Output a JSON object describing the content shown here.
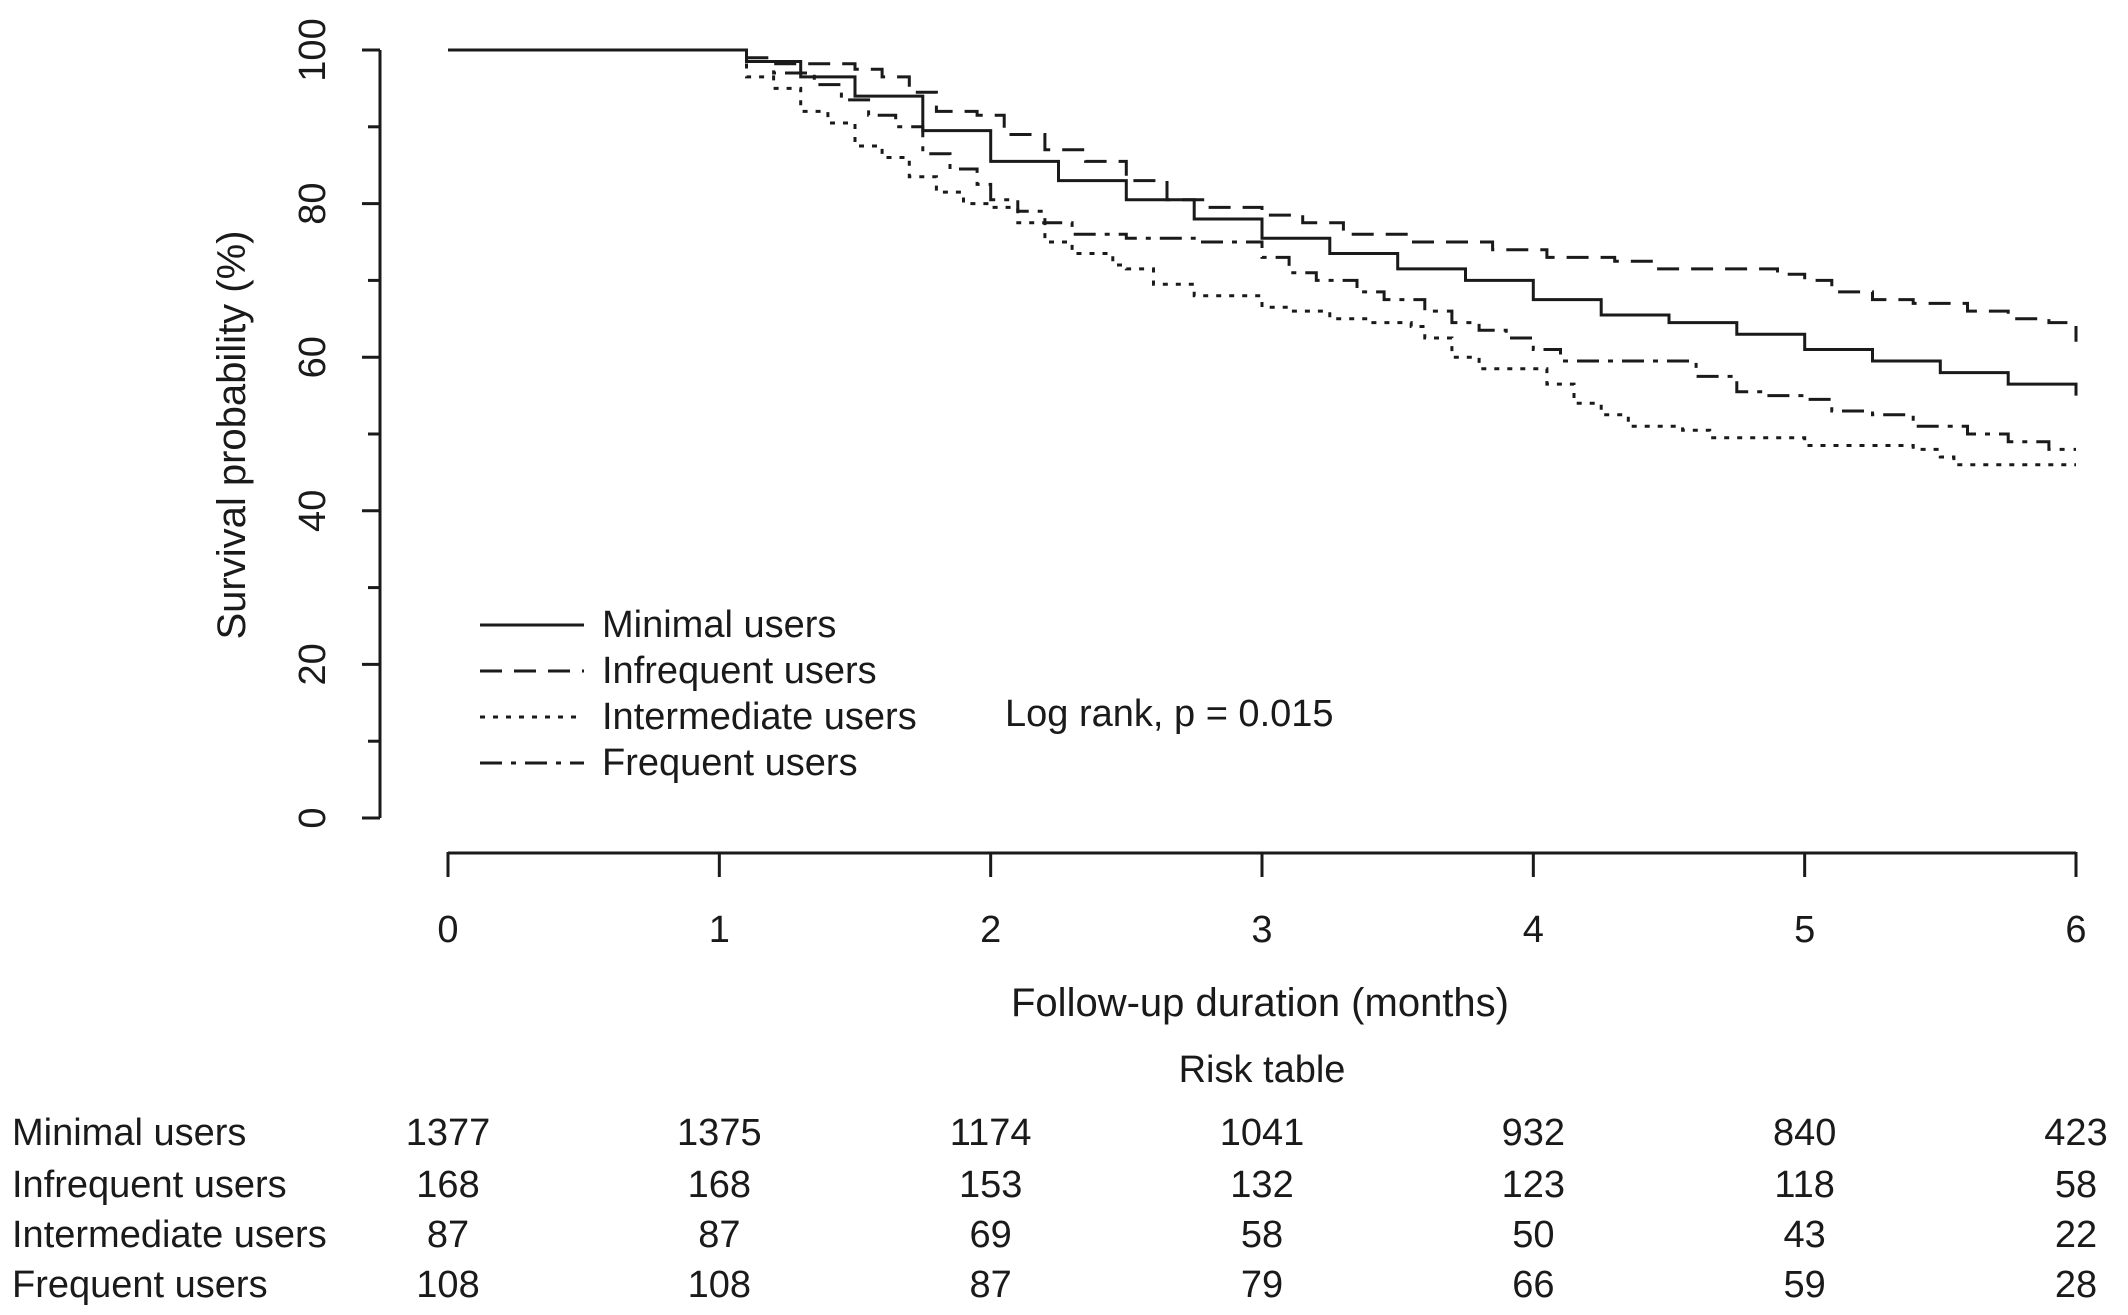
{
  "chart_data": {
    "type": "line",
    "title": "",
    "xlabel": "Follow-up duration (months)",
    "ylabel": "Survival probability (%)",
    "xlim": [
      0,
      6
    ],
    "ylim": [
      0,
      100
    ],
    "x_ticks": [
      "0",
      "1",
      "2",
      "3",
      "4",
      "5",
      "6"
    ],
    "y_ticks": [
      "0",
      "20",
      "40",
      "60",
      "80",
      "100"
    ],
    "grid": false,
    "legend_position": "bottom-left",
    "annotation": "Log rank, p = 0.015",
    "series": [
      {
        "name": "Minimal users",
        "dash": "solid",
        "points": [
          [
            0,
            100
          ],
          [
            1,
            100
          ],
          [
            1.1,
            98.5
          ],
          [
            1.3,
            96.5
          ],
          [
            1.5,
            94
          ],
          [
            1.75,
            89.5
          ],
          [
            2,
            85.5
          ],
          [
            2.25,
            83
          ],
          [
            2.5,
            80.5
          ],
          [
            2.75,
            78
          ],
          [
            3,
            75.5
          ],
          [
            3.25,
            73.5
          ],
          [
            3.5,
            71.5
          ],
          [
            3.75,
            70
          ],
          [
            4,
            67.5
          ],
          [
            4.25,
            65.5
          ],
          [
            4.5,
            64.5
          ],
          [
            4.75,
            63
          ],
          [
            5,
            61
          ],
          [
            5.25,
            59.5
          ],
          [
            5.5,
            58
          ],
          [
            5.75,
            56.5
          ],
          [
            6,
            55
          ]
        ]
      },
      {
        "name": "Infrequent users",
        "dash": "dashed",
        "points": [
          [
            0,
            100
          ],
          [
            1,
            100
          ],
          [
            1.1,
            99
          ],
          [
            1.2,
            98.2
          ],
          [
            1.4,
            98.2
          ],
          [
            1.5,
            97.5
          ],
          [
            1.6,
            96.5
          ],
          [
            1.7,
            94.5
          ],
          [
            1.8,
            92
          ],
          [
            1.95,
            91.5
          ],
          [
            2.05,
            89
          ],
          [
            2.2,
            87
          ],
          [
            2.35,
            85.5
          ],
          [
            2.5,
            83
          ],
          [
            2.65,
            80.5
          ],
          [
            2.8,
            79.5
          ],
          [
            3,
            78.5
          ],
          [
            3.15,
            77.5
          ],
          [
            3.3,
            76
          ],
          [
            3.55,
            75
          ],
          [
            3.85,
            74
          ],
          [
            4.05,
            73
          ],
          [
            4.3,
            72.5
          ],
          [
            4.45,
            71.5
          ],
          [
            4.75,
            71.5
          ],
          [
            4.9,
            70.8
          ],
          [
            5,
            70
          ],
          [
            5.1,
            68.5
          ],
          [
            5.25,
            67.5
          ],
          [
            5.4,
            67
          ],
          [
            5.6,
            66
          ],
          [
            5.75,
            65
          ],
          [
            5.9,
            64.5
          ],
          [
            6,
            62
          ]
        ]
      },
      {
        "name": "Intermediate users",
        "dash": "dotted",
        "points": [
          [
            0,
            100
          ],
          [
            1,
            100
          ],
          [
            1.1,
            96.5
          ],
          [
            1.2,
            95
          ],
          [
            1.3,
            92
          ],
          [
            1.4,
            90.5
          ],
          [
            1.5,
            87.5
          ],
          [
            1.6,
            86
          ],
          [
            1.7,
            83.5
          ],
          [
            1.8,
            81.5
          ],
          [
            1.9,
            80
          ],
          [
            2,
            79.5
          ],
          [
            2.1,
            77.5
          ],
          [
            2.2,
            75
          ],
          [
            2.3,
            73.5
          ],
          [
            2.45,
            72
          ],
          [
            2.5,
            71.5
          ],
          [
            2.6,
            69.5
          ],
          [
            2.7,
            69.5
          ],
          [
            2.75,
            68
          ],
          [
            2.9,
            68
          ],
          [
            3,
            66.5
          ],
          [
            3.1,
            66
          ],
          [
            3.25,
            65
          ],
          [
            3.4,
            64.5
          ],
          [
            3.55,
            64
          ],
          [
            3.6,
            62.5
          ],
          [
            3.7,
            60
          ],
          [
            3.8,
            58.5
          ],
          [
            3.95,
            58.5
          ],
          [
            4.05,
            56.5
          ],
          [
            4.15,
            54
          ],
          [
            4.25,
            52.5
          ],
          [
            4.35,
            51
          ],
          [
            4.55,
            50.5
          ],
          [
            4.65,
            49.5
          ],
          [
            4.9,
            49.5
          ],
          [
            5,
            48.5
          ],
          [
            5.4,
            48
          ],
          [
            5.5,
            47
          ],
          [
            5.55,
            46
          ],
          [
            5.75,
            46
          ],
          [
            6,
            46
          ]
        ]
      },
      {
        "name": "Frequent users",
        "dash": "dashdot",
        "points": [
          [
            0,
            100
          ],
          [
            1,
            100
          ],
          [
            1.1,
            98.5
          ],
          [
            1.2,
            97
          ],
          [
            1.35,
            95.5
          ],
          [
            1.45,
            93.5
          ],
          [
            1.55,
            91.5
          ],
          [
            1.65,
            90
          ],
          [
            1.75,
            86.5
          ],
          [
            1.85,
            84.5
          ],
          [
            1.95,
            82.5
          ],
          [
            2,
            80.5
          ],
          [
            2.1,
            79
          ],
          [
            2.2,
            77.5
          ],
          [
            2.3,
            76
          ],
          [
            2.5,
            75.5
          ],
          [
            2.75,
            75
          ],
          [
            2.95,
            75
          ],
          [
            3,
            73
          ],
          [
            3.1,
            71
          ],
          [
            3.2,
            70
          ],
          [
            3.35,
            68.5
          ],
          [
            3.45,
            67.5
          ],
          [
            3.6,
            66
          ],
          [
            3.7,
            64.5
          ],
          [
            3.8,
            63.5
          ],
          [
            3.9,
            62.5
          ],
          [
            4,
            61
          ],
          [
            4.1,
            59.5
          ],
          [
            4.5,
            59.5
          ],
          [
            4.6,
            57.5
          ],
          [
            4.75,
            55.5
          ],
          [
            4.85,
            55
          ],
          [
            5,
            54.5
          ],
          [
            5.1,
            53
          ],
          [
            5.25,
            52.5
          ],
          [
            5.4,
            51
          ],
          [
            5.6,
            50
          ],
          [
            5.75,
            49
          ],
          [
            5.9,
            48
          ],
          [
            6,
            48
          ]
        ]
      }
    ],
    "risk_table": {
      "title": "Risk table",
      "rows": [
        {
          "label": "Minimal users",
          "values": [
            "1377",
            "1375",
            "1174",
            "1041",
            "932",
            "840",
            "423"
          ]
        },
        {
          "label": "Infrequent users",
          "values": [
            "168",
            "168",
            "153",
            "132",
            "123",
            "118",
            "58"
          ]
        },
        {
          "label": "Intermediate users",
          "values": [
            "87",
            "87",
            "69",
            "58",
            "50",
            "43",
            "22"
          ]
        },
        {
          "label": "Frequent users",
          "values": [
            "108",
            "108",
            "87",
            "79",
            "66",
            "59",
            "28"
          ]
        }
      ]
    }
  }
}
